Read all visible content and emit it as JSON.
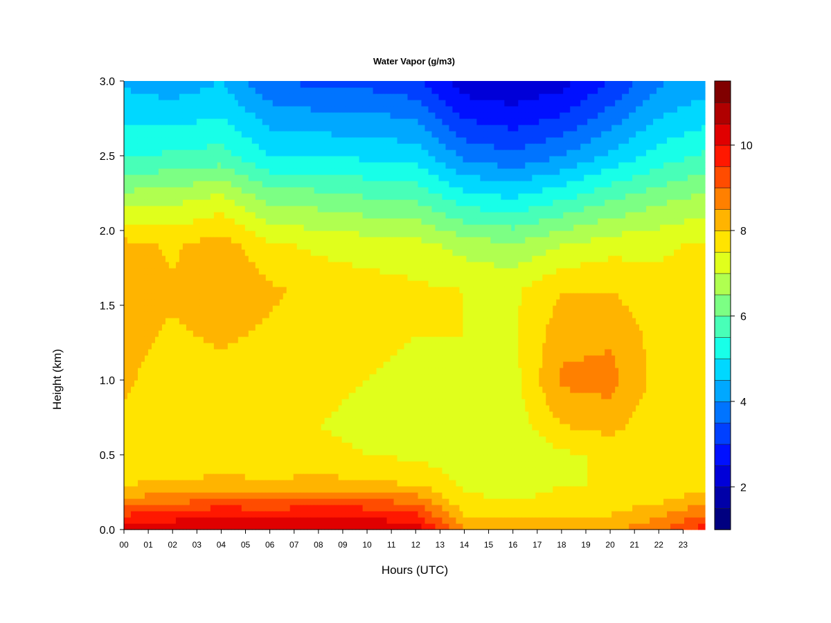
{
  "chart_data": {
    "type": "heatmap",
    "title": "Water Vapor (g/m3)",
    "xlabel": "Hours (UTC)",
    "ylabel": "Height (km)",
    "x_tick_labels": [
      "00",
      "01",
      "02",
      "03",
      "04",
      "05",
      "06",
      "07",
      "08",
      "09",
      "10",
      "11",
      "12",
      "13",
      "14",
      "15",
      "16",
      "17",
      "18",
      "19",
      "20",
      "21",
      "22",
      "23"
    ],
    "y_tick_labels": [
      "0.0",
      "0.5",
      "1.0",
      "1.5",
      "2.0",
      "2.5",
      "3.0"
    ],
    "xlim": [
      0,
      23.9
    ],
    "ylim": [
      0.0,
      3.0
    ],
    "colorbar": {
      "vmin": 1.0,
      "vmax": 11.5,
      "tick_values": [
        2,
        4,
        6,
        8,
        10
      ],
      "tick_labels": [
        "2",
        "4",
        "6",
        "8",
        "10"
      ],
      "colors": [
        "#000080",
        "#0000a8",
        "#0000d8",
        "#0010ff",
        "#0040ff",
        "#0074ff",
        "#00a8ff",
        "#00d8ff",
        "#18ffe8",
        "#48ffb8",
        "#7cff84",
        "#b0ff50",
        "#e0ff1c",
        "#ffe400",
        "#ffb400",
        "#ff8000",
        "#ff4c00",
        "#ff1800",
        "#e00000",
        "#b00000",
        "#800000"
      ]
    },
    "profiles": {
      "heights_km": [
        0.0,
        0.1,
        0.2,
        0.3,
        0.5,
        0.7,
        1.0,
        1.3,
        1.6,
        1.9,
        2.2,
        2.5,
        2.8,
        3.0
      ],
      "hours": [
        0,
        2,
        4,
        6,
        8,
        10,
        12,
        14,
        16,
        18,
        20,
        22,
        23.9
      ],
      "values": [
        [
          10.2,
          9.5,
          8.6,
          8.0,
          7.6,
          7.9,
          8.1,
          8.2,
          8.4,
          8.2,
          6.8,
          5.4,
          4.8,
          4.4
        ],
        [
          10.3,
          9.8,
          8.8,
          8.1,
          7.5,
          7.6,
          7.7,
          7.9,
          8.1,
          7.9,
          6.9,
          5.6,
          4.7,
          4.2
        ],
        [
          10.6,
          10.0,
          9.0,
          8.2,
          7.6,
          7.7,
          7.8,
          8.1,
          8.5,
          8.3,
          7.2,
          5.7,
          4.9,
          4.5
        ],
        [
          10.4,
          9.9,
          8.9,
          8.1,
          7.6,
          7.6,
          7.7,
          7.9,
          8.1,
          7.6,
          6.4,
          5.0,
          4.2,
          3.5
        ],
        [
          10.5,
          10.0,
          9.1,
          8.2,
          7.6,
          7.5,
          7.6,
          7.7,
          7.8,
          7.4,
          6.3,
          5.0,
          4.0,
          3.4
        ],
        [
          10.4,
          9.9,
          9.0,
          8.1,
          7.5,
          7.4,
          7.5,
          7.6,
          7.7,
          7.3,
          6.1,
          4.9,
          4.0,
          3.3
        ],
        [
          10.3,
          9.6,
          8.8,
          8.0,
          7.4,
          7.3,
          7.4,
          7.5,
          7.6,
          7.2,
          6.0,
          4.8,
          3.8,
          3.1
        ],
        [
          8.6,
          8.0,
          7.6,
          7.4,
          7.2,
          7.3,
          7.4,
          7.5,
          7.5,
          6.8,
          5.3,
          3.9,
          2.8,
          2.2
        ],
        [
          8.3,
          7.9,
          7.5,
          7.3,
          7.0,
          7.2,
          7.3,
          7.4,
          7.4,
          6.6,
          5.1,
          3.6,
          2.6,
          2.1
        ],
        [
          8.2,
          7.9,
          7.6,
          7.5,
          7.4,
          8.0,
          8.6,
          8.3,
          8.0,
          7.0,
          5.5,
          4.0,
          2.9,
          2.3
        ],
        [
          8.4,
          8.0,
          7.7,
          7.5,
          7.6,
          8.2,
          8.7,
          8.4,
          8.0,
          7.3,
          6.0,
          4.6,
          3.6,
          3.0
        ],
        [
          8.9,
          8.4,
          7.9,
          7.6,
          7.5,
          7.6,
          7.8,
          7.8,
          7.7,
          7.4,
          6.4,
          5.2,
          4.4,
          3.9
        ],
        [
          9.8,
          9.0,
          8.3,
          7.8,
          7.6,
          7.8,
          8.0,
          8.0,
          7.8,
          7.6,
          6.7,
          5.6,
          4.7,
          4.3
        ]
      ]
    }
  }
}
